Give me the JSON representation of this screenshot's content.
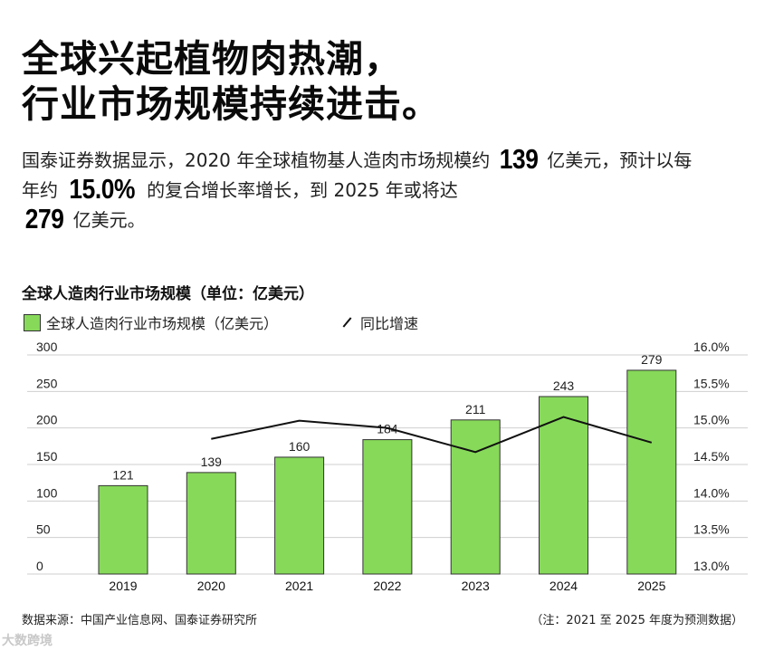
{
  "headline": {
    "line1": "全球兴起植物肉热潮，",
    "line2": "行业市场规模持续进击。"
  },
  "intro": {
    "part1": "国泰证券数据显示，2020 年全球植物基人造肉市场规模约 ",
    "value1": "139",
    "part2": " 亿美元，预计以每年约 ",
    "value2": "15.0%",
    "part3": " 的复合增长率增长，到 2025 年或将达 ",
    "value3": "279",
    "part4": " 亿美元。"
  },
  "chart_title": "全球人造肉行业市场规模（单位：亿美元）",
  "legend": {
    "bars": "全球人造肉行业市场规模（亿美元）",
    "line": "同比增速"
  },
  "colors": {
    "bar": "#87d95a",
    "bar_border": "#333333",
    "line": "#111111",
    "grid": "#cfcfcf"
  },
  "chart_data": {
    "type": "bar",
    "title": "全球人造肉行业市场规模（单位：亿美元）",
    "categories": [
      "2019",
      "2020",
      "2021",
      "2022",
      "2023",
      "2024",
      "2025"
    ],
    "series": [
      {
        "name": "全球人造肉行业市场规模（亿美元）",
        "type": "bar",
        "axis": "left",
        "values": [
          121,
          139,
          160,
          184,
          211,
          243,
          279
        ]
      },
      {
        "name": "同比增速",
        "type": "line",
        "axis": "right",
        "values": [
          null,
          14.85,
          15.1,
          15.0,
          14.67,
          15.15,
          14.8
        ]
      }
    ],
    "ylim": [
      0,
      300
    ],
    "y_ticks": [
      "0",
      "50",
      "100",
      "150",
      "200",
      "250",
      "300"
    ],
    "y2lim": [
      13.0,
      16.0
    ],
    "y2_ticks": [
      "13.0%",
      "13.5%",
      "14.0%",
      "14.5%",
      "15.0%",
      "15.5%",
      "16.0%"
    ],
    "xlabel": "",
    "ylabel": "",
    "grid": true
  },
  "footer": {
    "source": "数据来源：中国产业信息网、国泰证券研究所",
    "note": "（注：2021 至 2025 年度为预测数据）"
  },
  "watermark": "大数跨境"
}
